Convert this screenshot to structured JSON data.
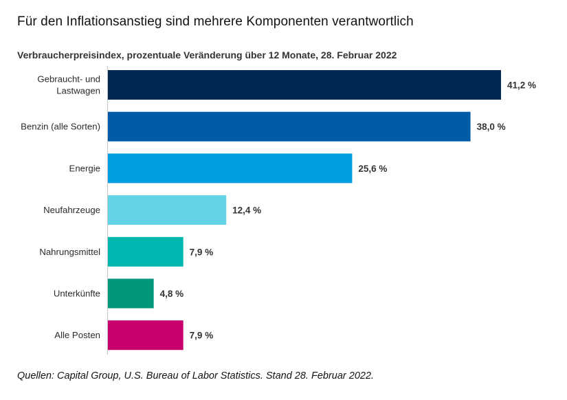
{
  "chart_data": {
    "type": "bar",
    "orientation": "horizontal",
    "title": "Für den Inflationsanstieg sind mehrere Komponenten verantwortlich",
    "subtitle": "Verbraucherpreisindex, prozentuale Veränderung über 12 Monate, 28. Februar 2022",
    "xlabel": "",
    "ylabel": "",
    "xlim": [
      0,
      41.2
    ],
    "grid": false,
    "legend": "none",
    "categories": [
      [
        "Gebraucht- und",
        "Lastwagen"
      ],
      [
        "Benzin (alle Sorten)"
      ],
      [
        "Energie"
      ],
      [
        "Neufahrzeuge"
      ],
      [
        "Nahrungsmittel"
      ],
      [
        "Unterkünfte"
      ],
      [
        "Alle Posten"
      ]
    ],
    "values": [
      41.2,
      38.0,
      25.6,
      12.4,
      7.9,
      4.8,
      7.9
    ],
    "value_labels": [
      "41,2 %",
      "38,0 %",
      "25,6 %",
      "12,4 %",
      "7,9 %",
      "4,8 %",
      "7,9 %"
    ],
    "colors": [
      "#002850",
      "#005ca8",
      "#009ee0",
      "#63d3e6",
      "#00b8b0",
      "#00977a",
      "#c8006e"
    ],
    "axis_color": "#c8c8c8",
    "source": "Quellen: Capital Group, U.S. Bureau of Labor Statistics. Stand 28. Februar 2022."
  }
}
